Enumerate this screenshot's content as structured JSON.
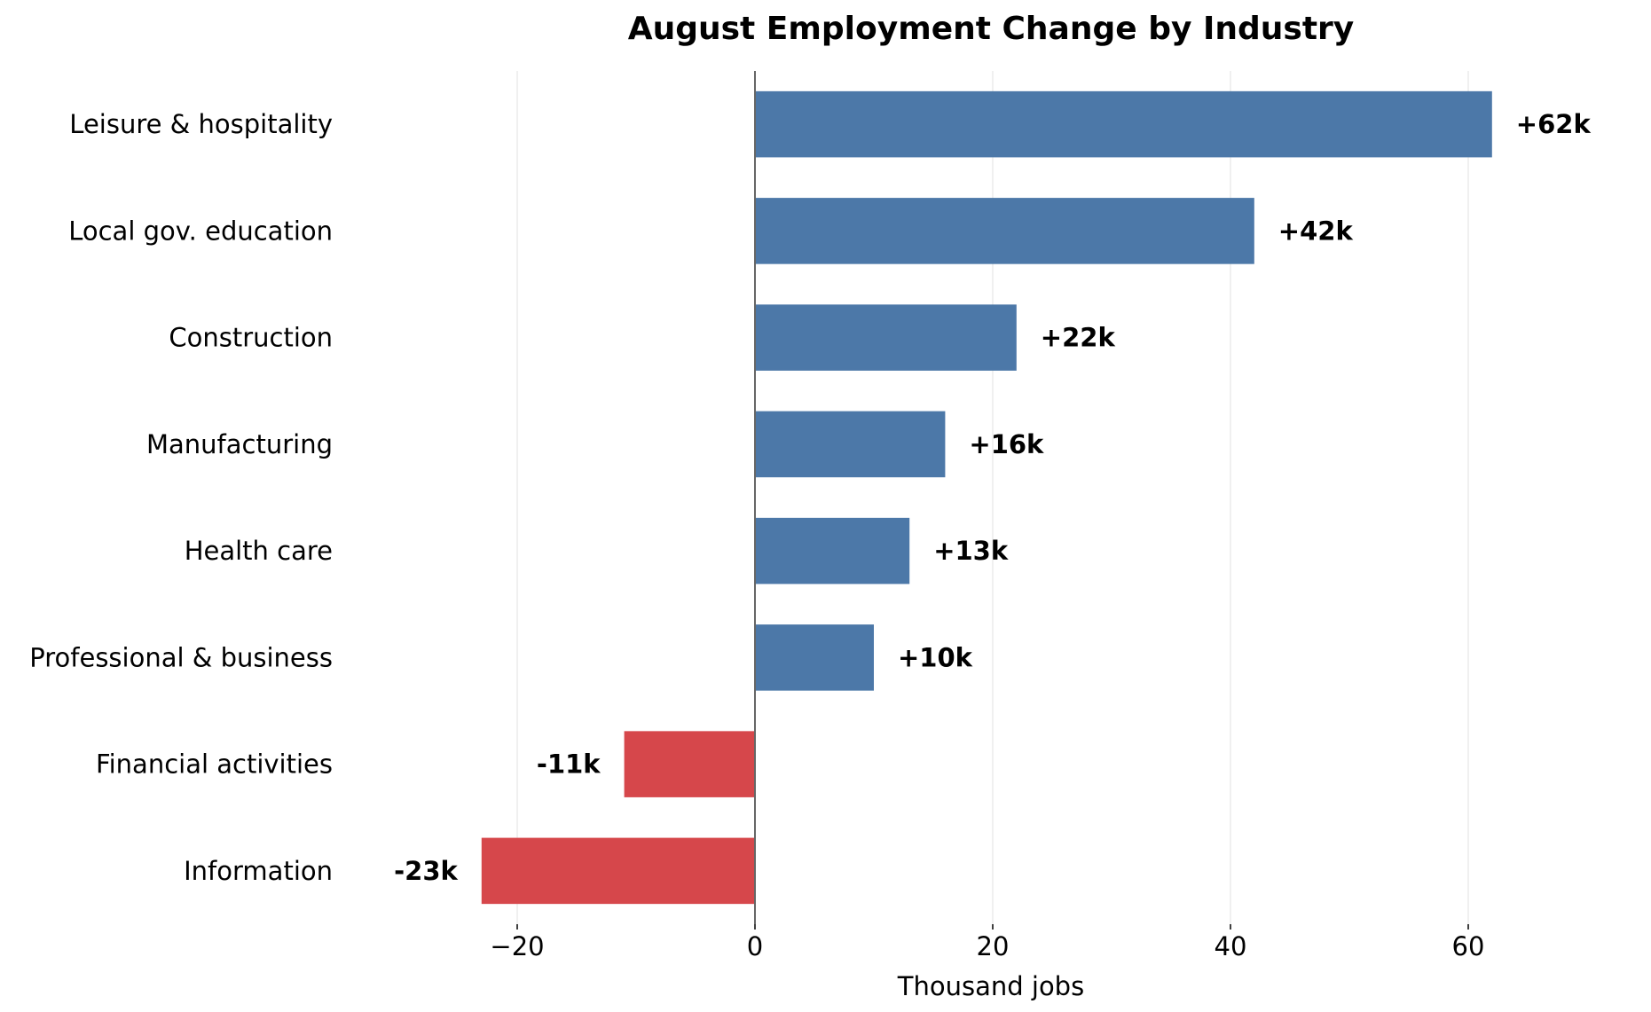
{
  "chart_data": {
    "type": "bar",
    "orientation": "horizontal",
    "title": "August Employment Change by Industry",
    "xlabel": "Thousand jobs",
    "ylabel": "",
    "xlim": [
      -30,
      70
    ],
    "xticks": [
      -20,
      0,
      20,
      40,
      60
    ],
    "xtick_labels": [
      "−20",
      "0",
      "20",
      "40",
      "60"
    ],
    "grid": "vertical",
    "categories": [
      "Leisure & hospitality",
      "Local gov. education",
      "Construction",
      "Manufacturing",
      "Health care",
      "Professional & business",
      "Financial activities",
      "Information"
    ],
    "values": [
      62,
      42,
      22,
      16,
      13,
      10,
      -11,
      -23
    ],
    "value_labels": [
      "+62k",
      "+42k",
      "+22k",
      "+16k",
      "+13k",
      "+10k",
      "-11k",
      "-23k"
    ],
    "colors": {
      "positive": "#4c78a8",
      "negative": "#d6474b"
    }
  }
}
